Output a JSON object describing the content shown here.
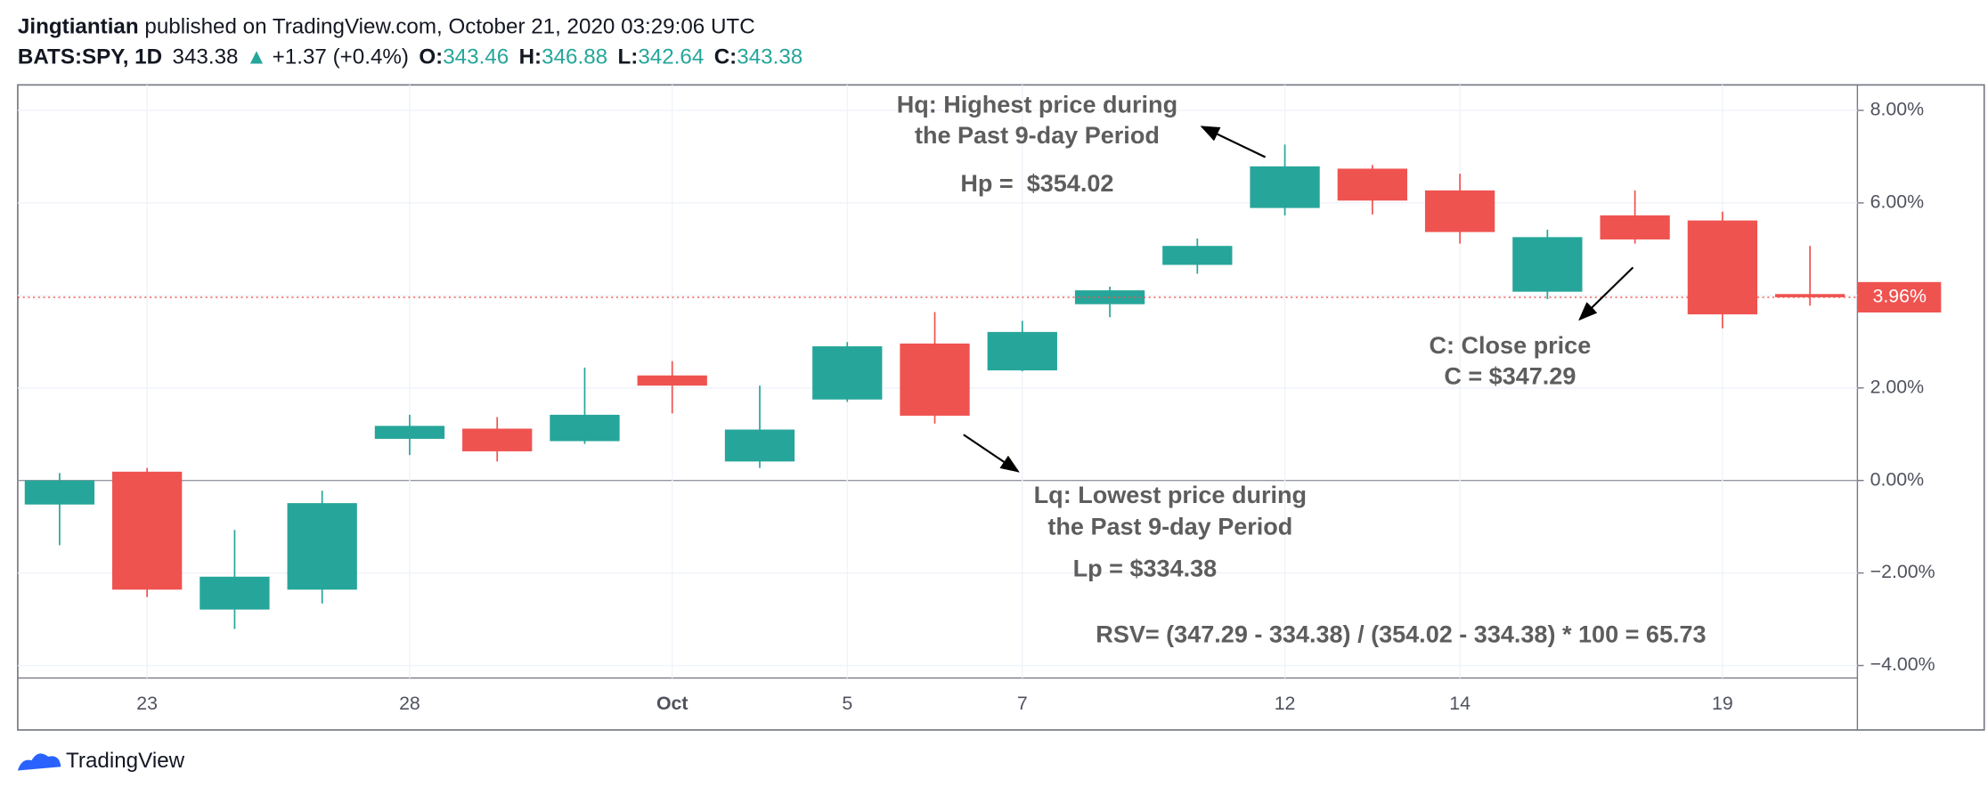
{
  "header": {
    "author": "Jingtiantian",
    "published": " published on TradingView.com, October 21, 2020 03:29:06 UTC",
    "symbol": "BATS:SPY, 1D",
    "price": "343.38",
    "change": "+1.37 (+0.4%)",
    "o_label": "O:",
    "o": "343.46",
    "h_label": "H:",
    "h": "346.88",
    "l_label": "L:",
    "l": "342.64",
    "c_label": "C:",
    "c": "343.38"
  },
  "chart_data": {
    "type": "candlestick",
    "categories": [
      null,
      "23",
      null,
      null,
      "28",
      null,
      null,
      "Oct",
      null,
      "5",
      null,
      "7",
      null,
      null,
      "12",
      null,
      "14",
      null,
      null,
      "19",
      null
    ],
    "series": [
      {
        "open": [
          -0.52,
          0.19,
          -2.79,
          -2.36,
          0.9,
          1.12,
          0.85,
          2.27,
          0.41,
          1.75,
          2.96,
          2.38,
          3.81,
          4.66,
          5.89,
          6.74,
          6.27,
          4.08,
          5.73,
          5.62,
          4.03
        ],
        "high": [
          0.16,
          0.27,
          -1.07,
          -0.22,
          1.42,
          1.37,
          2.44,
          2.58,
          2.05,
          2.99,
          3.64,
          3.45,
          4.19,
          5.23,
          7.26,
          6.82,
          6.63,
          5.42,
          6.27,
          5.81,
          5.07
        ],
        "low": [
          -1.4,
          -2.52,
          -3.21,
          -2.66,
          0.55,
          0.41,
          0.79,
          1.45,
          0.27,
          1.7,
          1.23,
          2.36,
          3.53,
          4.47,
          5.73,
          5.75,
          5.12,
          3.92,
          5.12,
          3.29,
          3.78
        ],
        "close": [
          0.0,
          -2.36,
          -2.08,
          -0.49,
          1.18,
          0.63,
          1.42,
          2.05,
          1.1,
          2.9,
          1.4,
          3.21,
          4.11,
          5.07,
          6.79,
          6.05,
          5.37,
          5.26,
          5.21,
          3.59,
          3.96
        ],
        "up_color": "#26a69a",
        "down_color": "#ef5350"
      }
    ],
    "ylim": [
      -4.27,
      8.55
    ],
    "yticks": [
      {
        "value": -4,
        "label": "−4.00%"
      },
      {
        "value": -2,
        "label": "−2.00%"
      },
      {
        "value": 0,
        "label": "0.00%"
      },
      {
        "value": 2,
        "label": "2.00%"
      },
      {
        "value": 4,
        "label": "4.00%"
      },
      {
        "value": 6,
        "label": "6.00%"
      },
      {
        "value": 8,
        "label": "8.00%"
      }
    ],
    "grid": true,
    "last_value": {
      "value": 3.96,
      "label": "3.96%"
    },
    "annotations": [
      {
        "text": "Hq: Highest price during",
        "color": "#5d5d5d"
      },
      {
        "text": "the Past 9-day Period",
        "color": "#5d5d5d"
      },
      {
        "text": "Hp =  $354.02",
        "color": "#2aa52a"
      },
      {
        "text": "Lq: Lowest price during",
        "color": "#5d5d5d"
      },
      {
        "text": "the Past 9-day Period",
        "color": "#5d5d5d"
      },
      {
        "text": "Lp = $334.38",
        "color": "#e52521"
      },
      {
        "text": "C: Close price",
        "color": "#5d5d5d"
      },
      {
        "text": "C = $347.29",
        "color": "#5d5d5d"
      },
      {
        "text": "RSV= (347.29 - 334.38) / (354.02 - 334.38) * 100 = 65.73",
        "color": "#000000"
      }
    ]
  },
  "footer": {
    "brand": "TradingView"
  }
}
